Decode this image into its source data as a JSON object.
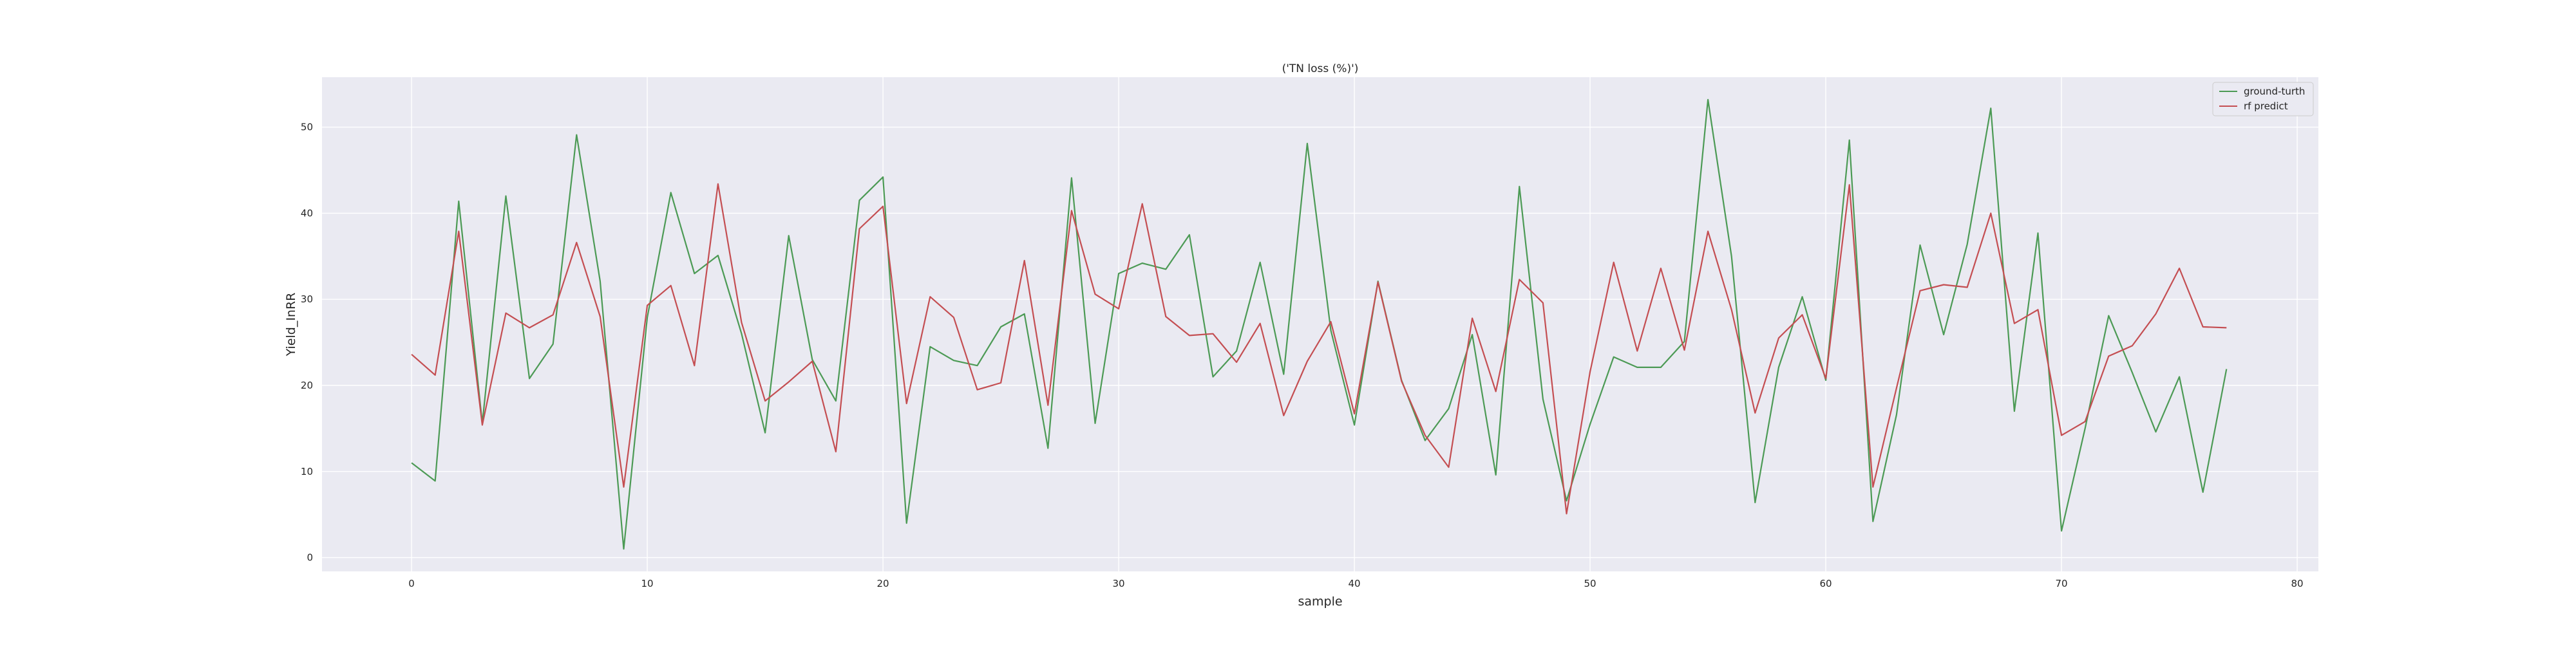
{
  "chart_data": {
    "type": "line",
    "title": "('TN loss (%)')",
    "xlabel": "sample",
    "ylabel": "Yield_InRR",
    "xlim": [
      -3.8,
      80.9
    ],
    "ylim": [
      -1.6,
      55.8
    ],
    "xticks": [
      0,
      10,
      20,
      30,
      40,
      50,
      60,
      70,
      80
    ],
    "yticks": [
      0,
      10,
      20,
      30,
      40,
      50
    ],
    "grid": true,
    "legend_position": "top-right",
    "x": [
      0,
      1,
      2,
      3,
      4,
      5,
      6,
      7,
      8,
      9,
      10,
      11,
      12,
      13,
      14,
      15,
      16,
      17,
      18,
      19,
      20,
      21,
      22,
      23,
      24,
      25,
      26,
      27,
      28,
      29,
      30,
      31,
      32,
      33,
      34,
      35,
      36,
      37,
      38,
      39,
      40,
      41,
      42,
      43,
      44,
      45,
      46,
      47,
      48,
      49,
      50,
      51,
      52,
      53,
      54,
      55,
      56,
      57,
      58,
      59,
      60,
      61,
      62,
      63,
      64,
      65,
      66,
      67,
      68,
      69,
      70,
      71,
      72,
      73,
      74,
      75,
      76,
      77
    ],
    "series": [
      {
        "name": "ground-turth",
        "color": "#4c9a55",
        "values": [
          11.0,
          8.9,
          41.4,
          15.6,
          42.0,
          20.8,
          24.8,
          49.1,
          32.1,
          1.0,
          27.9,
          42.4,
          33.0,
          35.1,
          26.0,
          14.5,
          37.4,
          23.0,
          18.2,
          41.5,
          44.2,
          4.0,
          24.5,
          22.9,
          22.3,
          26.8,
          28.3,
          12.7,
          44.1,
          15.6,
          33.0,
          34.2,
          33.5,
          37.5,
          21.0,
          24.0,
          34.3,
          21.3,
          48.1,
          26.4,
          15.4,
          32.1,
          20.6,
          13.6,
          17.3,
          25.9,
          9.6,
          43.1,
          18.4,
          6.6,
          15.5,
          23.3,
          22.1,
          22.1,
          25.1,
          53.2,
          35.0,
          6.4,
          22.1,
          30.3,
          20.6,
          48.5,
          4.2,
          16.6,
          36.3,
          25.9,
          36.4,
          52.2,
          17.0,
          37.7,
          3.1,
          15.0,
          28.1,
          21.5,
          14.6,
          21.0,
          7.6,
          21.9
        ]
      },
      {
        "name": "rf predict",
        "color": "#c44e52",
        "values": [
          23.6,
          21.2,
          37.9,
          15.4,
          28.4,
          26.7,
          28.2,
          36.6,
          28.0,
          8.2,
          29.3,
          31.6,
          22.3,
          43.4,
          27.3,
          18.2,
          20.4,
          22.8,
          12.3,
          38.2,
          40.8,
          17.9,
          30.3,
          27.9,
          19.5,
          20.3,
          34.5,
          17.7,
          40.3,
          30.6,
          28.9,
          41.1,
          28.0,
          25.8,
          26.0,
          22.7,
          27.2,
          16.5,
          22.8,
          27.4,
          16.7,
          32.0,
          20.5,
          14.2,
          10.5,
          27.8,
          19.3,
          32.3,
          29.6,
          5.1,
          21.6,
          34.3,
          24.0,
          33.6,
          24.1,
          37.9,
          28.8,
          16.8,
          25.5,
          28.2,
          20.8,
          43.3,
          8.2,
          19.7,
          31.0,
          31.7,
          31.4,
          40.0,
          27.2,
          28.8,
          14.2,
          15.8,
          23.4,
          24.6,
          28.3,
          33.6,
          26.8,
          26.7
        ]
      }
    ]
  }
}
